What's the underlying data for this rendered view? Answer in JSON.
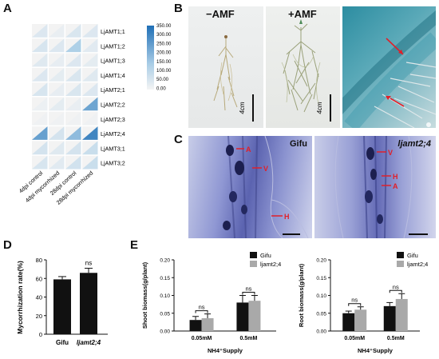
{
  "panels": {
    "a": "A",
    "b": "B",
    "c": "C",
    "d": "D",
    "e": "E"
  },
  "heatmap": {
    "rows": [
      "LjAMT1;1",
      "LjAMT1;2",
      "LjAMT1;3",
      "LjAMT1;4",
      "LjAMT2;1",
      "LjAMT2;2",
      "LjAMT2;3",
      "LjAMT2;4",
      "LjAMT3;1",
      "LjAMT3;2"
    ],
    "cols": [
      "4dpi control",
      "4dpi mycorrhized",
      "28dpi control",
      "28dpi mycorrhized"
    ],
    "values": [
      [
        45,
        20,
        50,
        45
      ],
      [
        55,
        45,
        130,
        35
      ],
      [
        40,
        25,
        45,
        30
      ],
      [
        45,
        30,
        50,
        40
      ],
      [
        55,
        25,
        50,
        45
      ],
      [
        15,
        30,
        20,
        230
      ],
      [
        10,
        10,
        10,
        10
      ],
      [
        240,
        60,
        180,
        300
      ],
      [
        60,
        40,
        60,
        80
      ],
      [
        55,
        35,
        65,
        80
      ]
    ],
    "legend_ticks": [
      "350.00",
      "300.00",
      "250.00",
      "200.00",
      "150.00",
      "100.00",
      "50.00",
      "0.00"
    ],
    "color_min": "#f4f4f4",
    "color_max": "#1f6fb6"
  },
  "panel_b": {
    "minus_label": "−AMF",
    "plus_label": "+AMF",
    "scale_label": "4cm"
  },
  "panel_c": {
    "label_gifu": "Gifu",
    "label_mut": "ljamt2;4",
    "arrow_a": "A",
    "arrow_v": "V",
    "arrow_h": "H"
  },
  "panel_d": {
    "ylabel": "Mycorrhization rate(%)",
    "yticks": [
      "0",
      "20",
      "40",
      "60",
      "80"
    ],
    "categories": [
      "Gifu",
      "ljamt2;4"
    ],
    "sig": "ns"
  },
  "panel_e": {
    "xlabel": "NH4⁺Supply",
    "groups": [
      "0.05mM",
      "0.5mM"
    ],
    "legend": [
      "Gifu",
      "ljamt2;4"
    ],
    "shoot_ylabel": "Shoot biomass(g/plant)",
    "root_ylabel": "Root biomass(g/plant)",
    "yticks": [
      "0.00",
      "0.05",
      "0.10",
      "0.15",
      "0.20"
    ],
    "sig": "ns"
  },
  "chart_data": [
    {
      "type": "bar",
      "title": "",
      "categories": [
        "Gifu",
        "ljamt2;4"
      ],
      "series": [
        {
          "values": [
            59,
            66
          ]
        }
      ],
      "error": [
        3,
        5
      ],
      "ylabel": "Mycorrhization rate(%)",
      "ylim": [
        0,
        80
      ]
    },
    {
      "type": "bar",
      "title": "",
      "categories": [
        "0.05mM",
        "0.5mM"
      ],
      "series": [
        {
          "name": "Gifu",
          "values": [
            0.031,
            0.08
          ],
          "error": [
            0.01,
            0.02
          ]
        },
        {
          "name": "ljamt2;4",
          "values": [
            0.036,
            0.085
          ],
          "error": [
            0.012,
            0.015
          ]
        }
      ],
      "xlabel": "NH4⁺Supply",
      "ylabel": "Shoot biomass(g/plant)",
      "ylim": [
        0,
        0.2
      ]
    },
    {
      "type": "bar",
      "title": "",
      "categories": [
        "0.05mM",
        "0.5mM"
      ],
      "series": [
        {
          "name": "Gifu",
          "values": [
            0.05,
            0.07
          ],
          "error": [
            0.006,
            0.01
          ]
        },
        {
          "name": "ljamt2;4",
          "values": [
            0.06,
            0.09
          ],
          "error": [
            0.008,
            0.015
          ]
        }
      ],
      "xlabel": "NH4⁺Supply",
      "ylabel": "Root biomass(g/plant)",
      "ylim": [
        0,
        0.2
      ]
    }
  ]
}
